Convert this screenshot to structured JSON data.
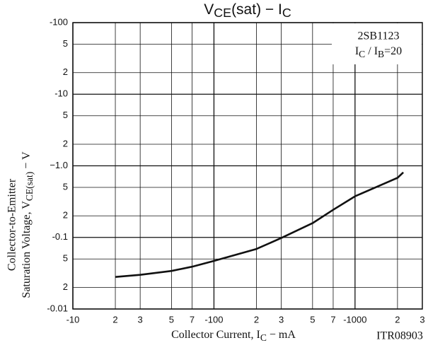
{
  "chart_data": {
    "type": "line",
    "log_x": true,
    "log_y": true,
    "grid": true,
    "title": [
      "V",
      "CE",
      "(sat)  −  I",
      "C"
    ],
    "x_label": [
      "Collector Current, I",
      "C",
      "  −  mA"
    ],
    "y_label": [
      "Collector-to-Emitter",
      [
        "Saturation Voltage, V",
        "CE(sat)",
        "  −  V"
      ]
    ],
    "annotations": [
      "2SB1123",
      [
        "I",
        "C",
        " / I",
        "B",
        "=20"
      ]
    ],
    "note": "ITR08903",
    "xlim": [
      -10,
      -3000
    ],
    "xticks": [
      -10,
      {
        "value": -20,
        "label": "2"
      },
      {
        "value": -30,
        "label": "3"
      },
      {
        "value": -50,
        "label": "5"
      },
      {
        "value": -70,
        "label": "7"
      },
      -100,
      {
        "value": -200,
        "label": "2"
      },
      {
        "value": -300,
        "label": "3"
      },
      {
        "value": -500,
        "label": "5"
      },
      {
        "value": -700,
        "label": "7"
      },
      -1000,
      {
        "value": -2000,
        "label": "2"
      },
      {
        "value": -3000,
        "label": "3"
      }
    ],
    "ylim": [
      -0.01,
      -100
    ],
    "yticks": [
      -0.01,
      {
        "value": -0.02,
        "label": "2"
      },
      {
        "value": -0.05,
        "label": "5"
      },
      -0.1,
      {
        "value": -0.2,
        "label": "2"
      },
      {
        "value": -0.5,
        "label": "5"
      },
      {
        "value": -1,
        "label": "−1.0"
      },
      {
        "value": -2,
        "label": "2"
      },
      {
        "value": -5,
        "label": "5"
      },
      -10,
      {
        "value": -20,
        "label": "2"
      },
      {
        "value": -50,
        "label": "5"
      },
      -100
    ],
    "x": [
      -20,
      -30,
      -50,
      -70,
      -100,
      -200,
      -300,
      -500,
      -700,
      -1000,
      -2000,
      -2200
    ],
    "series": [
      {
        "color": "#111111",
        "values": [
          -0.028,
          -0.03,
          -0.034,
          -0.039,
          -0.047,
          -0.069,
          -0.098,
          -0.158,
          -0.243,
          -0.375,
          -0.68,
          -0.81
        ]
      }
    ]
  }
}
